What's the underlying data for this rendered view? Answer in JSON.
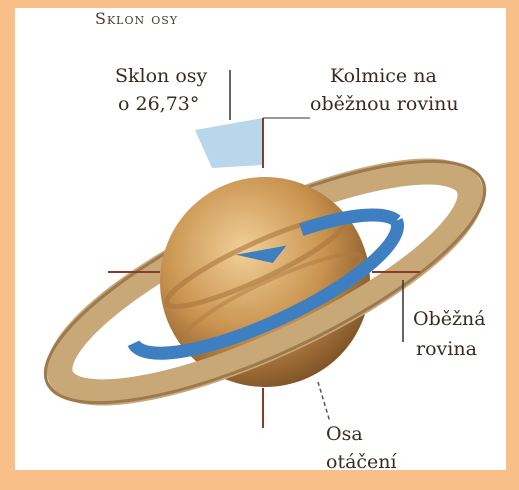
{
  "title": "Sklon osy",
  "labels": {
    "tilt": [
      "Sklon osy",
      "o 26,73°"
    ],
    "perpendicular": [
      "Kolmice na",
      "oběžnou rovinu"
    ],
    "orbital_plane": [
      "Oběžná",
      "rovina"
    ],
    "rotation_axis": [
      "Osa",
      "otáčení"
    ]
  }
}
